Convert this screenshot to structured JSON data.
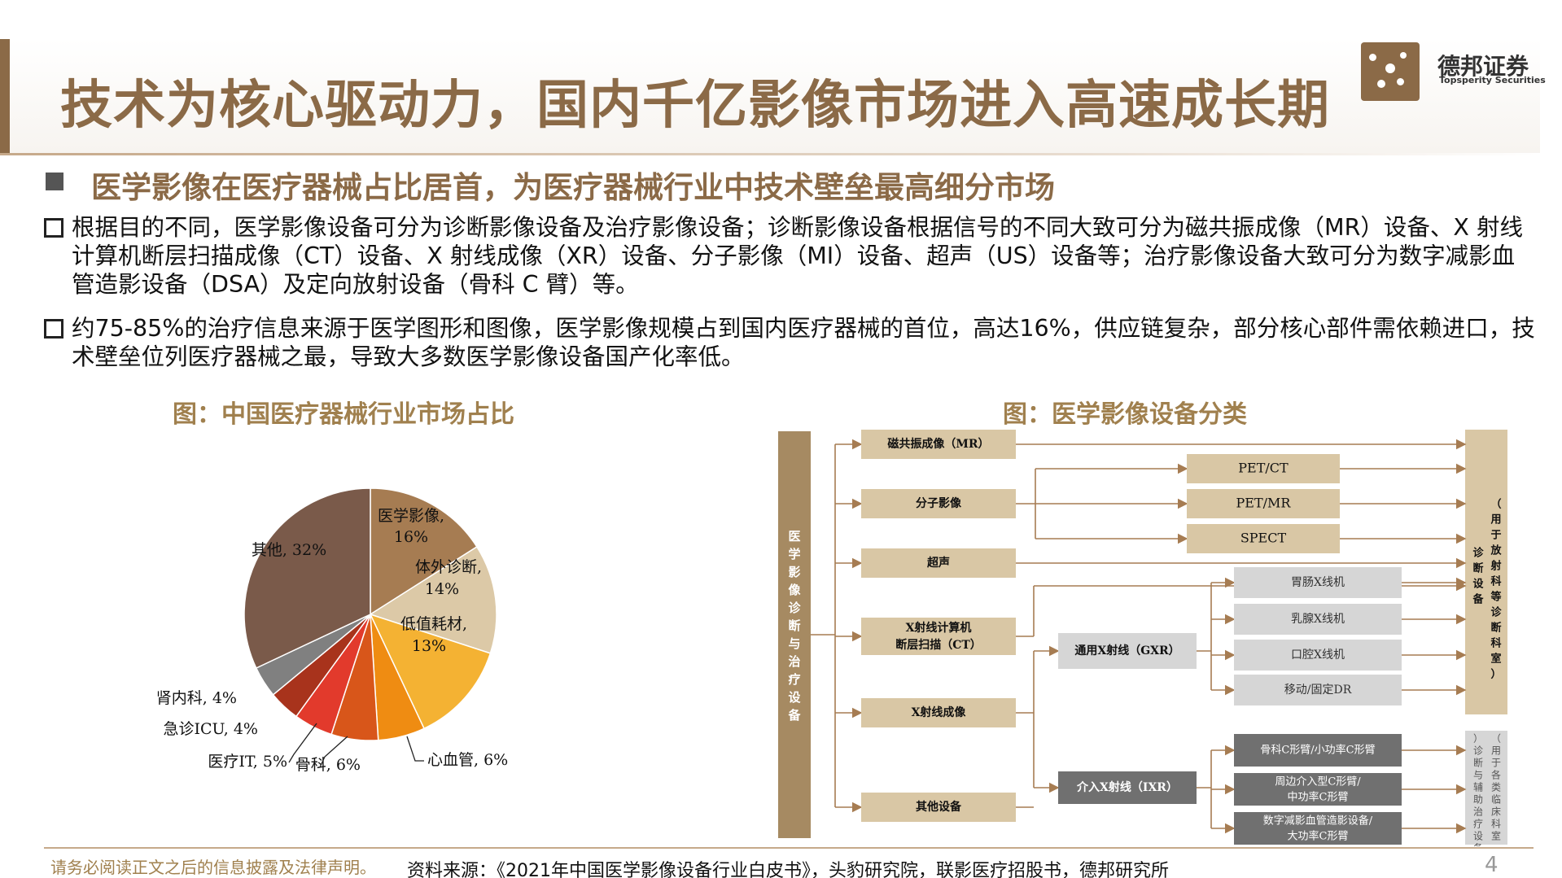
{
  "header": {
    "title": "技术为核心驱动力，国内千亿影像市场进入高速成长期",
    "logo_cn": "德邦证券",
    "logo_en": "Topsperity Securities"
  },
  "subtitle": "医学影像在医疗器械占比居首，为医疗器械行业中技术壁垒最高细分市场",
  "paragraphs": [
    "根据目的不同，医学影像设备可分为诊断影像设备及治疗影像设备；诊断影像设备根据信号的不同大致可分为磁共振成像（MR）设备、X 射线计算机断层扫描成像（CT）设备、X 射线成像（XR）设备、分子影像（MI）设备、超声（US）设备等；治疗影像设备大致可分为数字减影血管造影设备（DSA）及定向放射设备（骨科 C 臂）等。",
    "约75-85%的治疗信息来源于医学图形和图像，医学影像规模占到国内医疗器械的首位，高达16%，供应链复杂，部分核心部件需依赖进口，技术壁垒位列医疗器械之最，导致大多数医学影像设备国产化率低。"
  ],
  "left_caption": "图：中国医疗器械行业市场占比",
  "right_caption": "图：医学影像设备分类",
  "chart_data": {
    "type": "pie",
    "title": "",
    "slices": [
      {
        "name": "医学影像",
        "value": 16,
        "label": "16%",
        "color": "#a67c52"
      },
      {
        "name": "体外诊断",
        "value": 14,
        "label": "14%",
        "color": "#dcc9a7"
      },
      {
        "name": "低值耗材",
        "value": 13,
        "label": "13%",
        "color": "#f4b233"
      },
      {
        "name": "心血管",
        "value": 6,
        "label": "6%",
        "color": "#ef8c12"
      },
      {
        "name": "骨科",
        "value": 6,
        "label": "6%",
        "color": "#d8561a"
      },
      {
        "name": "医疗IT",
        "value": 5,
        "label": "5%",
        "color": "#e23a2c"
      },
      {
        "name": "急诊ICU",
        "value": 4,
        "label": "4%",
        "color": "#a8331c"
      },
      {
        "name": "肾内科",
        "value": 4,
        "label": "4%",
        "color": "#808080"
      },
      {
        "name": "其他",
        "value": 32,
        "label": "32%",
        "color": "#7a5a4a"
      }
    ]
  },
  "diagram": {
    "root": "医学影像诊断与治疗设备",
    "categories": [
      "磁共振成像（MR）",
      "分子影像",
      "超声",
      "X射线计算机断层扫描（CT）",
      "X射线成像",
      "其他设备"
    ],
    "mi_types": [
      "PET/CT",
      "PET/MR",
      "SPECT"
    ],
    "xr_types": [
      "通用X射线（GXR）",
      "介入X射线（IXR）"
    ],
    "gxr_items": [
      "胃肠X线机",
      "乳腺X线机",
      "口腔X线机",
      "移动/固定DR"
    ],
    "ixr_items": [
      "骨科C形臂/小功率C形臂",
      "周边介入型C形臂/中功率C形臂",
      "数字减影血管造影设备/大功率C形臂"
    ],
    "diag_target": "（用于放射科等诊断科室）诊断设备",
    "treat_target": "（用于各类临床科室）诊断与辅助治疗设备"
  },
  "footer": {
    "disclaimer": "请务必阅读正文之后的信息披露及法律声明。",
    "source": "资料来源：《2021年中国医学影像设备行业白皮书》，头豹研究院，联影医疗招股书，德邦研究所",
    "page": "4"
  }
}
